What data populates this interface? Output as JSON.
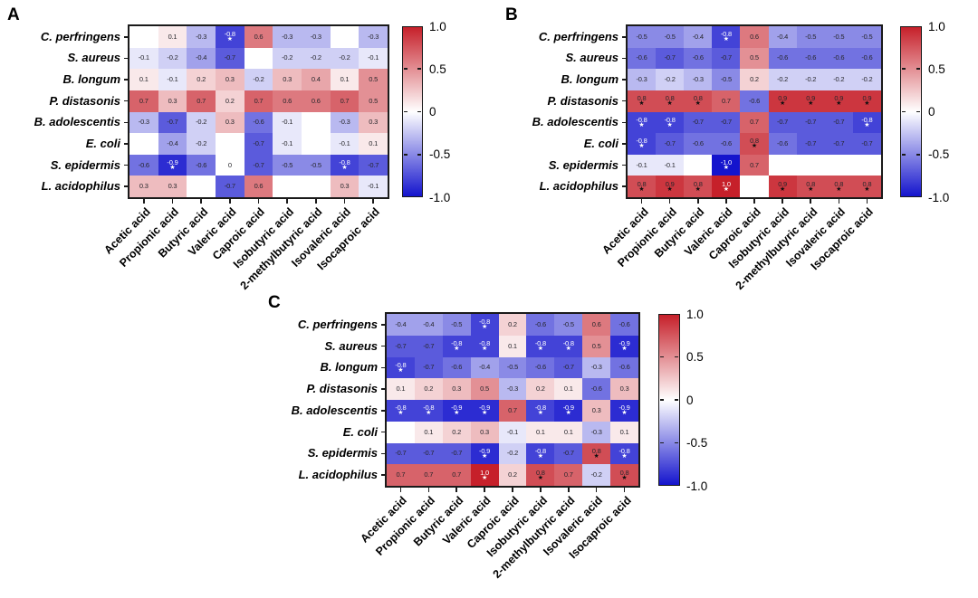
{
  "chart_data": [
    {
      "type": "heatmap",
      "panel_label": "A",
      "x_labels": [
        "Acetic acid",
        "Propionic acid",
        "Butyric acid",
        "Valeric acid",
        "Caproic acid",
        "Isobutyric acid",
        "2-methylbutyric acid",
        "Isovaleric acid",
        "Isocaproic acid"
      ],
      "y_labels": [
        "C. perfringens",
        "S. aureus",
        "B. longum",
        "P. distasonis",
        "B. adolescentis",
        "E. coli",
        "S. epidermis",
        "L. acidophilus"
      ],
      "cells": [
        [
          "",
          "0.1",
          "-0.3",
          "-0.8*",
          "0.6",
          "-0.3",
          "-0.3",
          "",
          "-0.3"
        ],
        [
          "-0.1",
          "-0.2",
          "-0.4",
          "-0.7",
          "",
          "-0.2",
          "-0.2",
          "-0.2",
          "-0.1"
        ],
        [
          "0.1",
          "-0.1",
          "0.2",
          "0.3",
          "-0.2",
          "0.3",
          "0.4",
          "0.1",
          "0.5"
        ],
        [
          "0.7",
          "0.3",
          "0.7",
          "0.2",
          "0.7",
          "0.6",
          "0.6",
          "0.7",
          "0.5"
        ],
        [
          "-0.3",
          "-0.7",
          "-0.2",
          "0.3",
          "-0.6",
          "-0.1",
          "",
          "-0.3",
          "0.3"
        ],
        [
          "",
          "-0.4",
          "-0.2",
          "",
          "-0.7",
          "-0.1",
          "",
          "-0.1",
          "0.1"
        ],
        [
          "-0.6",
          "-0.9*",
          "-0.6",
          "0",
          "-0.7",
          "-0.5",
          "-0.5",
          "-0.8*",
          "-0.7"
        ],
        [
          "0.3",
          "0.3",
          "",
          "-0.7",
          "0.6",
          "",
          "",
          "0.3",
          "-0.1"
        ]
      ],
      "value_range": [
        -1,
        1
      ]
    },
    {
      "type": "heatmap",
      "panel_label": "B",
      "x_labels": [
        "Acetic acid",
        "Propionic acid",
        "Butyric acid",
        "Valeric acid",
        "Caproic acid",
        "Isobutyric acid",
        "2-methylbutyric acid",
        "Isovaleric acid",
        "Isocaproic acid"
      ],
      "y_labels": [
        "C. perfringens",
        "S. aureus",
        "B. longum",
        "P. distasonis",
        "B. adolescentis",
        "E. coli",
        "S. epidermis",
        "L. acidophilus"
      ],
      "cells": [
        [
          "-0.5",
          "-0.5",
          "-0.4",
          "-0.8*",
          "0.6",
          "-0.4",
          "-0.5",
          "-0.5",
          "-0.5"
        ],
        [
          "-0.6",
          "-0.7",
          "-0.6",
          "-0.7",
          "0.5",
          "-0.6",
          "-0.6",
          "-0.6",
          "-0.6"
        ],
        [
          "-0.3",
          "-0.2",
          "-0.3",
          "-0.5",
          "0.2",
          "-0.2",
          "-0.2",
          "-0.2",
          "-0.2"
        ],
        [
          "0.8*",
          "0.8*",
          "0.8*",
          "0.7",
          "-0.6",
          "0.9*",
          "0.9*",
          "0.9*",
          "0.9*"
        ],
        [
          "-0.8*",
          "-0.8*",
          "-0.7",
          "-0.7",
          "0.7",
          "-0.7",
          "-0.7",
          "-0.7",
          "-0.8*"
        ],
        [
          "-0.8*",
          "-0.7",
          "-0.6",
          "-0.6",
          "0.8*",
          "-0.6",
          "-0.7",
          "-0.7",
          "-0.7"
        ],
        [
          "-0.1",
          "-0.1",
          "",
          "-1.0*",
          "0.7",
          "",
          "",
          "",
          ""
        ],
        [
          "0.8*",
          "0.9*",
          "0.8*",
          "1.0*",
          "",
          "0.9*",
          "0.8*",
          "0.8*",
          "0.8*"
        ]
      ],
      "value_range": [
        -1,
        1
      ]
    },
    {
      "type": "heatmap",
      "panel_label": "C",
      "x_labels": [
        "Acetic acid",
        "Propionic acid",
        "Butyric acid",
        "Valeric acid",
        "Caproic acid",
        "Isobutyric acid",
        "2-methylbutyric acid",
        "Isovaleric acid",
        "Isocaproic acid"
      ],
      "y_labels": [
        "C. perfringens",
        "S. aureus",
        "B. longum",
        "P. distasonis",
        "B. adolescentis",
        "E. coli",
        "S. epidermis",
        "L. acidophilus"
      ],
      "cells": [
        [
          "-0.4",
          "-0.4",
          "-0.5",
          "-0.8*",
          "0.2",
          "-0.6",
          "-0.5",
          "0.6",
          "-0.6"
        ],
        [
          "-0.7",
          "-0.7",
          "-0.8*",
          "-0.8*",
          "0.1",
          "-0.8*",
          "-0.8*",
          "0.5",
          "-0.9*"
        ],
        [
          "-0.8*",
          "-0.7",
          "-0.6",
          "-0.4",
          "-0.5",
          "-0.6",
          "-0.7",
          "-0.3",
          "-0.6"
        ],
        [
          "0.1",
          "0.2",
          "0.3",
          "0.5",
          "-0.3",
          "0.2",
          "0.1",
          "-0.6",
          "0.3"
        ],
        [
          "-0.8*",
          "-0.8*",
          "-0.9*",
          "-0.9*",
          "0.7",
          "-0.8*",
          "-0.9*",
          "0.3",
          "-0.9*"
        ],
        [
          "",
          "0.1",
          "0.2",
          "0.3",
          "-0.1",
          "0.1",
          "0.1",
          "-0.3",
          "0.1"
        ],
        [
          "-0.7",
          "-0.7",
          "-0.7",
          "-0.9*",
          "-0.2",
          "-0.8*",
          "-0.7",
          "0.8*",
          "-0.8*"
        ],
        [
          "0.7",
          "0.7",
          "0.7",
          "1.0*",
          "0.2",
          "0.8*",
          "0.7",
          "-0.2",
          "0.8*"
        ]
      ],
      "value_range": [
        -1,
        1
      ]
    }
  ],
  "colorbar": {
    "tick_labels": [
      "1.0",
      "0.5",
      "0",
      "-0.5",
      "-1.0"
    ],
    "max_color": "#C6202A",
    "mid_color": "#FFFFFF",
    "min_color": "#1414CD"
  },
  "significance_marker": "★"
}
